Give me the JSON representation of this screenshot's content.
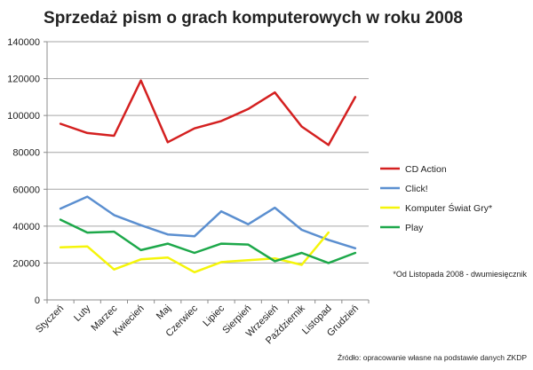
{
  "chart_data": {
    "type": "line",
    "title": "Sprzedaż pism o grach komputerowych w roku 2008",
    "xlabel": "",
    "ylabel": "",
    "ylim": [
      0,
      140000
    ],
    "yticks": [
      0,
      20000,
      40000,
      60000,
      80000,
      100000,
      120000,
      140000
    ],
    "ytick_labels": [
      "0",
      "20000",
      "40000",
      "60000",
      "80000",
      "100000",
      "120000",
      "140000"
    ],
    "grid": true,
    "legend_position": "right",
    "categories": [
      "Styczeń",
      "Luty",
      "Marzec",
      "Kwiecień",
      "Maj",
      "Czerwiec",
      "Lipiec",
      "Sierpień",
      "Wrzesień",
      "Październik",
      "Listopad",
      "Grudzień"
    ],
    "series": [
      {
        "name": "CD Action",
        "color": "#d42020",
        "values": [
          95500,
          90500,
          89000,
          119000,
          85500,
          93000,
          97000,
          103500,
          112500,
          94000,
          84000,
          110000
        ]
      },
      {
        "name": "Click!",
        "color": "#5b8fd0",
        "values": [
          49500,
          56000,
          46000,
          40500,
          35500,
          34500,
          48000,
          41000,
          50000,
          38000,
          32500,
          28000
        ]
      },
      {
        "name": "Komputer Świat Gry*",
        "color": "#f5f50a",
        "values": [
          28500,
          29000,
          16500,
          22000,
          23000,
          15000,
          20500,
          21500,
          22500,
          19000,
          36500,
          null
        ]
      },
      {
        "name": "Play",
        "color": "#1da84a",
        "values": [
          43500,
          36500,
          37000,
          27000,
          30500,
          25500,
          30500,
          30000,
          21000,
          25500,
          20000,
          25500
        ]
      }
    ],
    "annotations": {
      "note": "*Od Listopada 2008 - dwumiesięcznik",
      "source": "Źródło: opracowanie własne na podstawie danych ZKDP"
    }
  }
}
